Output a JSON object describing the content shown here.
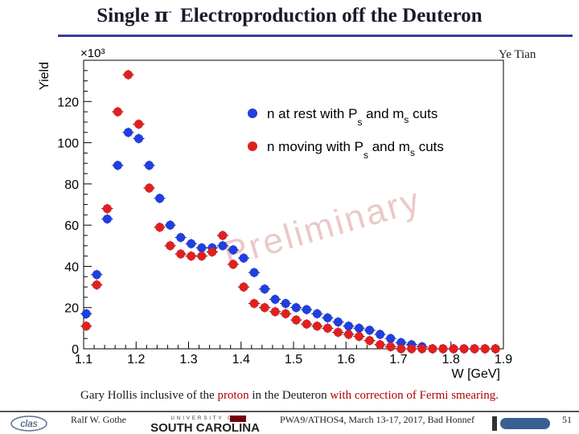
{
  "slide": {
    "title_prefix": "Single",
    "title_pi": "π",
    "title_sup": "-",
    "title_suffix": "Electroproduction off the Deuteron",
    "author": "Ye Tian",
    "caption_part1": "Gary Hollis inclusive of the",
    "caption_proton": "proton",
    "caption_part2": "in the Deuteron",
    "caption_with": "with correction of Fermi smearing.",
    "footer_presenter": "Ralf W. Gothe",
    "footer_event": "PWA9/ATHOS4, March 13-17, 2017, Bad Honnef",
    "page_number": "51",
    "logo_left_text": "clas",
    "logo_mid_text": "SOUTH CAROLINA",
    "logo_mid_top": "UNIVERSITY OF"
  },
  "chart_data": {
    "type": "scatter",
    "xlabel": "W [GeV]",
    "ylabel": "Yield",
    "y_multiplier": "×10³",
    "xlim": [
      1.1,
      1.9
    ],
    "ylim": [
      0,
      140
    ],
    "x_ticks": [
      1.1,
      1.2,
      1.3,
      1.4,
      1.5,
      1.6,
      1.7,
      1.8,
      1.9
    ],
    "x_tick_labels": [
      "1.1",
      "1.2",
      "1.3",
      "1.4",
      "1.5",
      "1.6",
      "1.7",
      "1.8",
      "1.9"
    ],
    "y_ticks": [
      0,
      20,
      40,
      60,
      80,
      100,
      120
    ],
    "y_tick_labels": [
      "0",
      "20",
      "40",
      "60",
      "80",
      "100",
      "120"
    ],
    "watermark": "Preliminary",
    "legend": [
      {
        "text": "n at rest with P",
        "sub1": "s",
        "mid": "and m",
        "sub2": "s",
        "end": "cuts",
        "color": "#1f3fe0"
      },
      {
        "text": "n moving with P",
        "sub1": "s",
        "mid": "and m",
        "sub2": "s",
        "end": "cuts",
        "color": "#e02020"
      }
    ],
    "series": [
      {
        "name": "n at rest with Ps and ms cuts",
        "color": "#1f3fe0",
        "x": [
          1.105,
          1.125,
          1.145,
          1.165,
          1.185,
          1.205,
          1.225,
          1.245,
          1.265,
          1.285,
          1.305,
          1.325,
          1.345,
          1.365,
          1.385,
          1.405,
          1.425,
          1.445,
          1.465,
          1.485,
          1.505,
          1.525,
          1.545,
          1.565,
          1.585,
          1.605,
          1.625,
          1.645,
          1.665,
          1.685,
          1.705,
          1.725,
          1.745,
          1.765,
          1.785,
          1.805,
          1.825,
          1.845,
          1.865,
          1.885
        ],
        "y": [
          17,
          36,
          63,
          89,
          105,
          102,
          89,
          73,
          60,
          54,
          51,
          49,
          49,
          50,
          48,
          44,
          37,
          29,
          24,
          22,
          20,
          19,
          17,
          15,
          13,
          11,
          10,
          9,
          7,
          5,
          3,
          2,
          1,
          0,
          0,
          0,
          0,
          0,
          0,
          0
        ]
      },
      {
        "name": "n moving with Ps and ms cuts",
        "color": "#e02020",
        "x": [
          1.105,
          1.125,
          1.145,
          1.165,
          1.185,
          1.205,
          1.225,
          1.245,
          1.265,
          1.285,
          1.305,
          1.325,
          1.345,
          1.365,
          1.385,
          1.405,
          1.425,
          1.445,
          1.465,
          1.485,
          1.505,
          1.525,
          1.545,
          1.565,
          1.585,
          1.605,
          1.625,
          1.645,
          1.665,
          1.685,
          1.705,
          1.725,
          1.745,
          1.765,
          1.785,
          1.805,
          1.825,
          1.845,
          1.865,
          1.885
        ],
        "y": [
          11,
          31,
          68,
          115,
          133,
          109,
          78,
          59,
          50,
          46,
          45,
          45,
          47,
          55,
          41,
          30,
          22,
          20,
          18,
          17,
          14,
          12,
          11,
          10,
          8,
          7,
          6,
          4,
          2,
          1,
          0,
          0,
          0,
          0,
          0,
          0,
          0,
          0,
          0,
          0
        ]
      }
    ]
  }
}
